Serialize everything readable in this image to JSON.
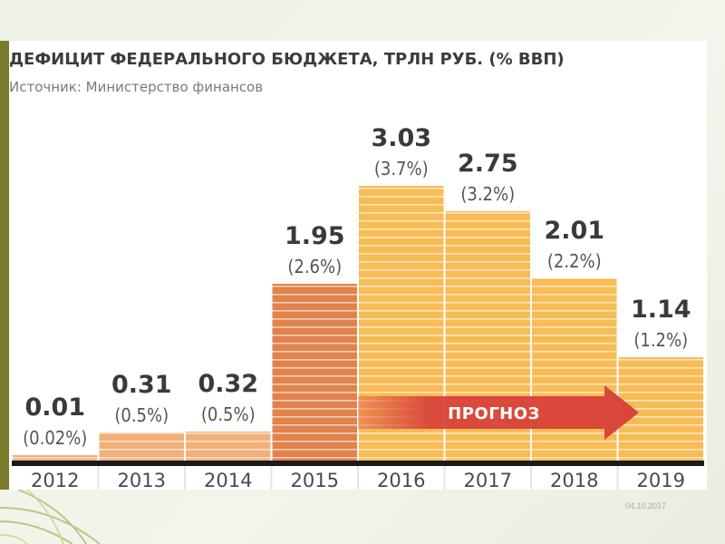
{
  "title": "ДЕФИЦИТ ФЕДЕРАЛЬНОГО БЮДЖЕТА, ТРЛН РУБ. (% ВВП)",
  "subtitle": "Источник: Министерство финансов",
  "forecast_label": "ПРОГНОЗ",
  "date_stamp": "04.10.2017",
  "colors": {
    "actual_dark": "#e0834d",
    "actual_light": "#f2b079",
    "forecast": "#f8bc56",
    "arrow": "#d9453a",
    "baseline": "#1a1a1a"
  },
  "chart_data": {
    "type": "bar",
    "title": "ДЕФИЦИТ ФЕДЕРАЛЬНОГО БЮДЖЕТА, ТРЛН РУБ. (% ВВП)",
    "categories": [
      "2012",
      "2013",
      "2014",
      "2015",
      "2016",
      "2017",
      "2018",
      "2019"
    ],
    "values": [
      0.01,
      0.31,
      0.32,
      1.95,
      3.03,
      2.75,
      2.01,
      1.14
    ],
    "value_labels": [
      "0.01",
      "0.31",
      "0.32",
      "1.95",
      "3.03",
      "2.75",
      "2.01",
      "1.14"
    ],
    "pct_labels": [
      "(0.02%)",
      "(0.5%)",
      "(0.5%)",
      "(2.6%)",
      "(3.7%)",
      "(3.2%)",
      "(2.2%)",
      "(1.2%)"
    ],
    "forecast_from": "2016",
    "ylim": [
      0,
      3.5
    ],
    "grid": false,
    "xlabel": "",
    "ylabel": ""
  }
}
